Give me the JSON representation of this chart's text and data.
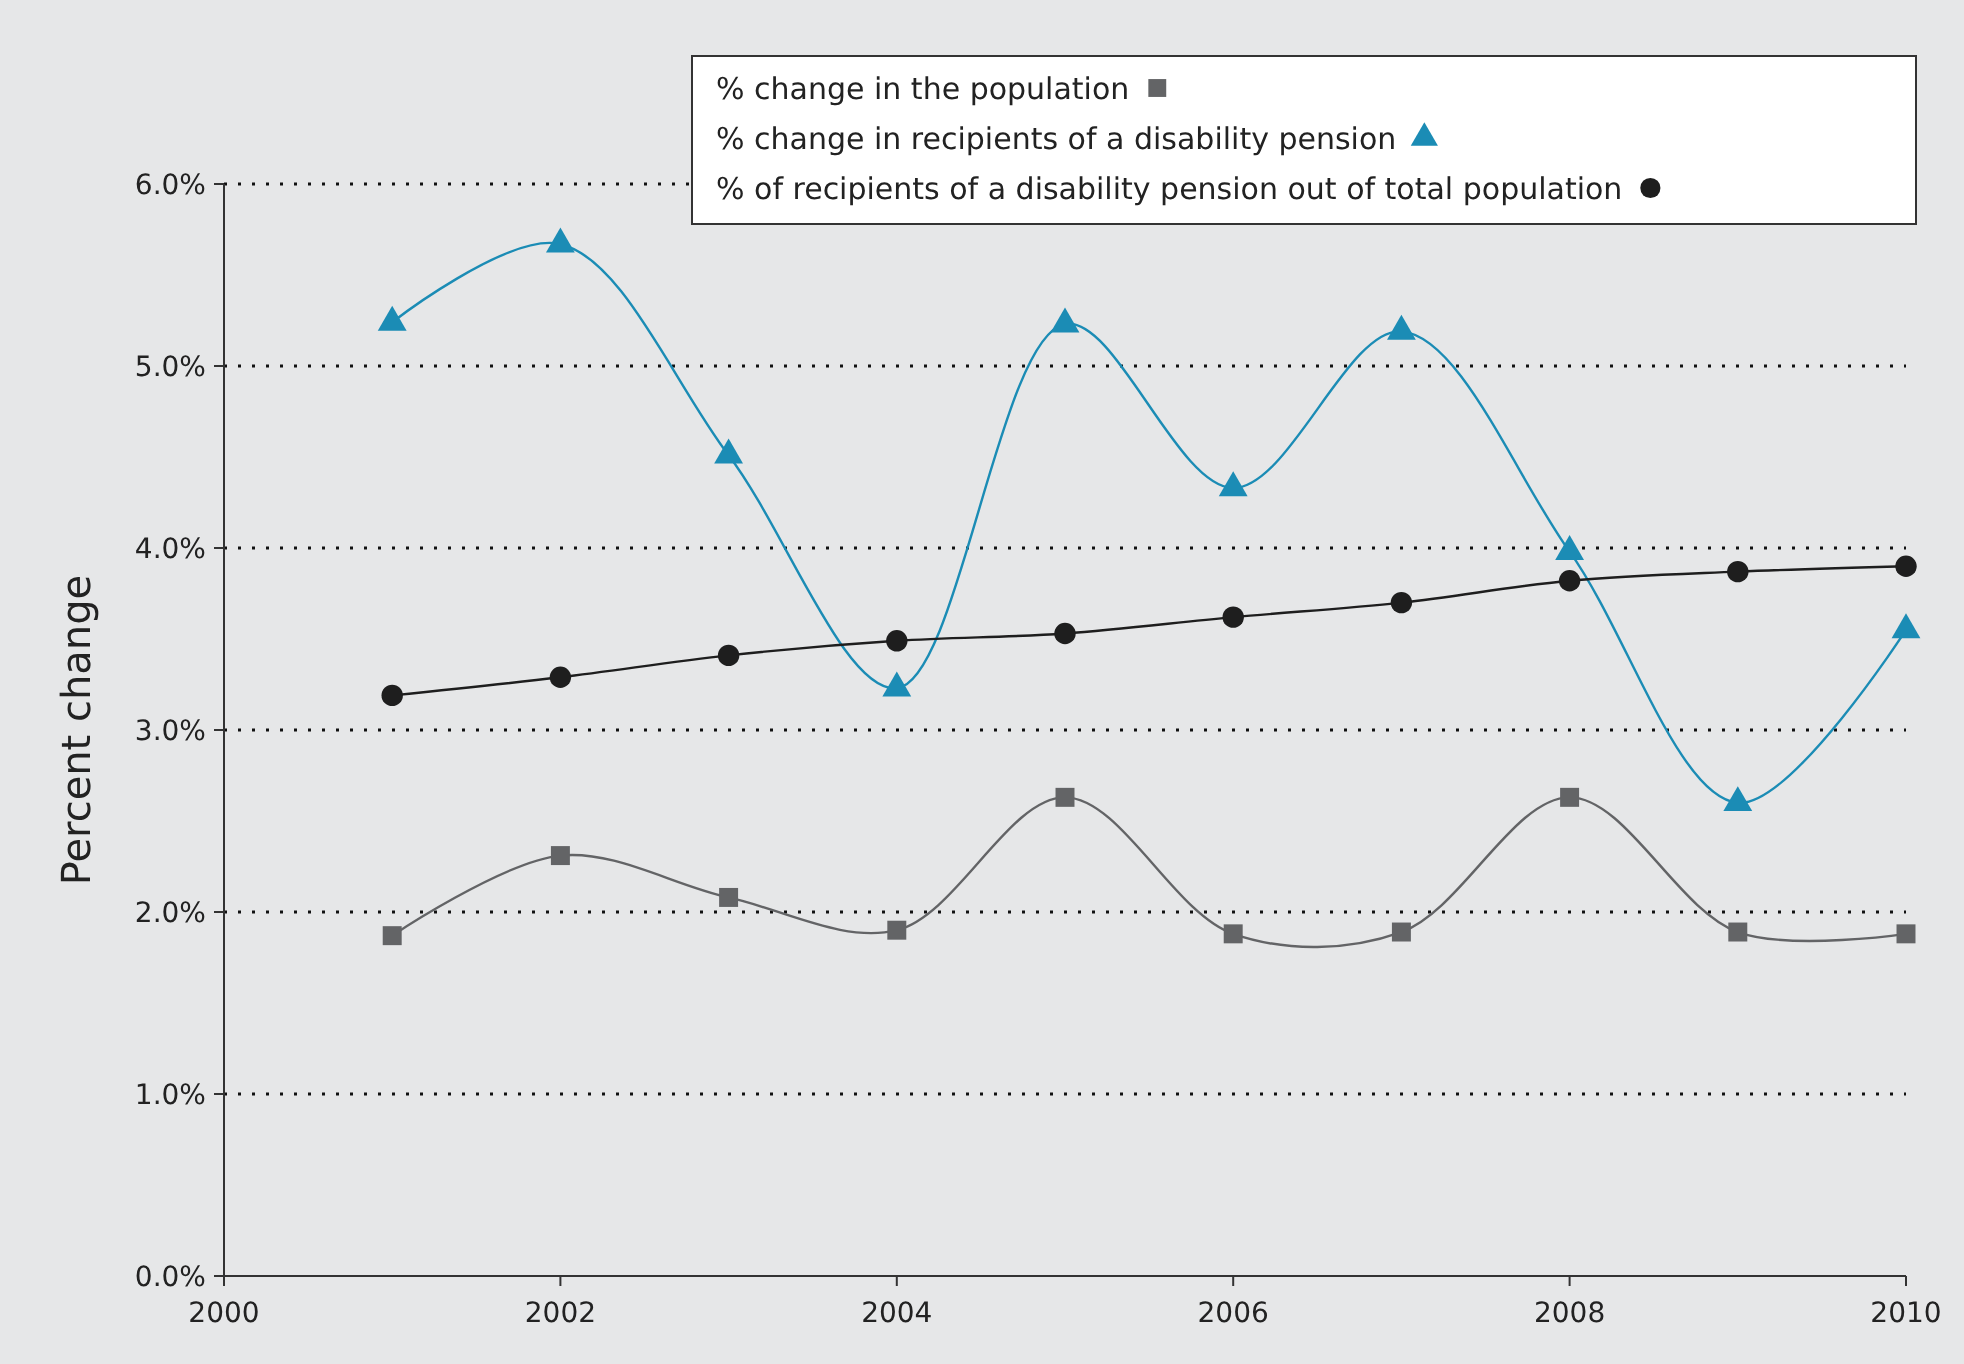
{
  "chart_data": {
    "type": "line",
    "ylabel": "Percent change",
    "x": [
      2001,
      2002,
      2003,
      2004,
      2005,
      2006,
      2007,
      2008,
      2009,
      2010
    ],
    "series": [
      {
        "name": "% change in the population",
        "color": "#636466",
        "marker": "square",
        "values": [
          1.87,
          2.31,
          2.08,
          1.9,
          2.63,
          1.88,
          1.89,
          2.63,
          1.89,
          1.88
        ]
      },
      {
        "name": "% change in recipients of a disability pension",
        "color": "#1b8cb5",
        "marker": "triangle",
        "values": [
          5.24,
          5.67,
          4.51,
          3.23,
          5.23,
          4.33,
          5.19,
          3.98,
          2.6,
          3.55
        ]
      },
      {
        "name": "% of recipients of a disability pension out of total population",
        "color": "#1e1e1e",
        "marker": "circle",
        "values": [
          3.19,
          3.29,
          3.41,
          3.49,
          3.53,
          3.62,
          3.7,
          3.82,
          3.87,
          3.9
        ]
      }
    ],
    "xlim": [
      2000,
      2010
    ],
    "xticks": [
      2000,
      2002,
      2004,
      2006,
      2008,
      2010
    ],
    "ylim": [
      0,
      6
    ],
    "yticks": [
      {
        "value": 0,
        "label": "0.0%"
      },
      {
        "value": 1,
        "label": "1.0%"
      },
      {
        "value": 2,
        "label": "2.0%"
      },
      {
        "value": 3,
        "label": "3.0%"
      },
      {
        "value": 4,
        "label": "4.0%"
      },
      {
        "value": 5,
        "label": "5.0%"
      },
      {
        "value": 6,
        "label": "6.0%"
      }
    ],
    "grid": "y",
    "legend": "top right",
    "line_style": "solid"
  }
}
